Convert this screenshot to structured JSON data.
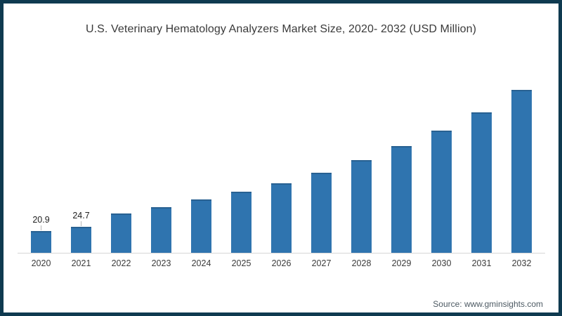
{
  "frame": {
    "border_color": "#0f3a50",
    "background": "#ffffff"
  },
  "chart_data": {
    "type": "bar",
    "title": "U.S. Veterinary Hematology Analyzers Market Size, 2020- 2032 (USD Million)",
    "xlabel": "",
    "ylabel": "",
    "ylim": [
      0,
      160
    ],
    "grid": false,
    "legend": false,
    "bar_color": "#2f74af",
    "categories": [
      "2020",
      "2021",
      "2022",
      "2023",
      "2024",
      "2025",
      "2026",
      "2027",
      "2028",
      "2029",
      "2030",
      "2031",
      "2032"
    ],
    "values": [
      20.9,
      24.7,
      37.5,
      43.5,
      51,
      58.5,
      66,
      76.5,
      88.5,
      102,
      116.5,
      134,
      155
    ],
    "data_labels": {
      "2020": "20.9",
      "2021": "24.7"
    }
  },
  "source": {
    "label": "Source: www.gminsights.com"
  }
}
